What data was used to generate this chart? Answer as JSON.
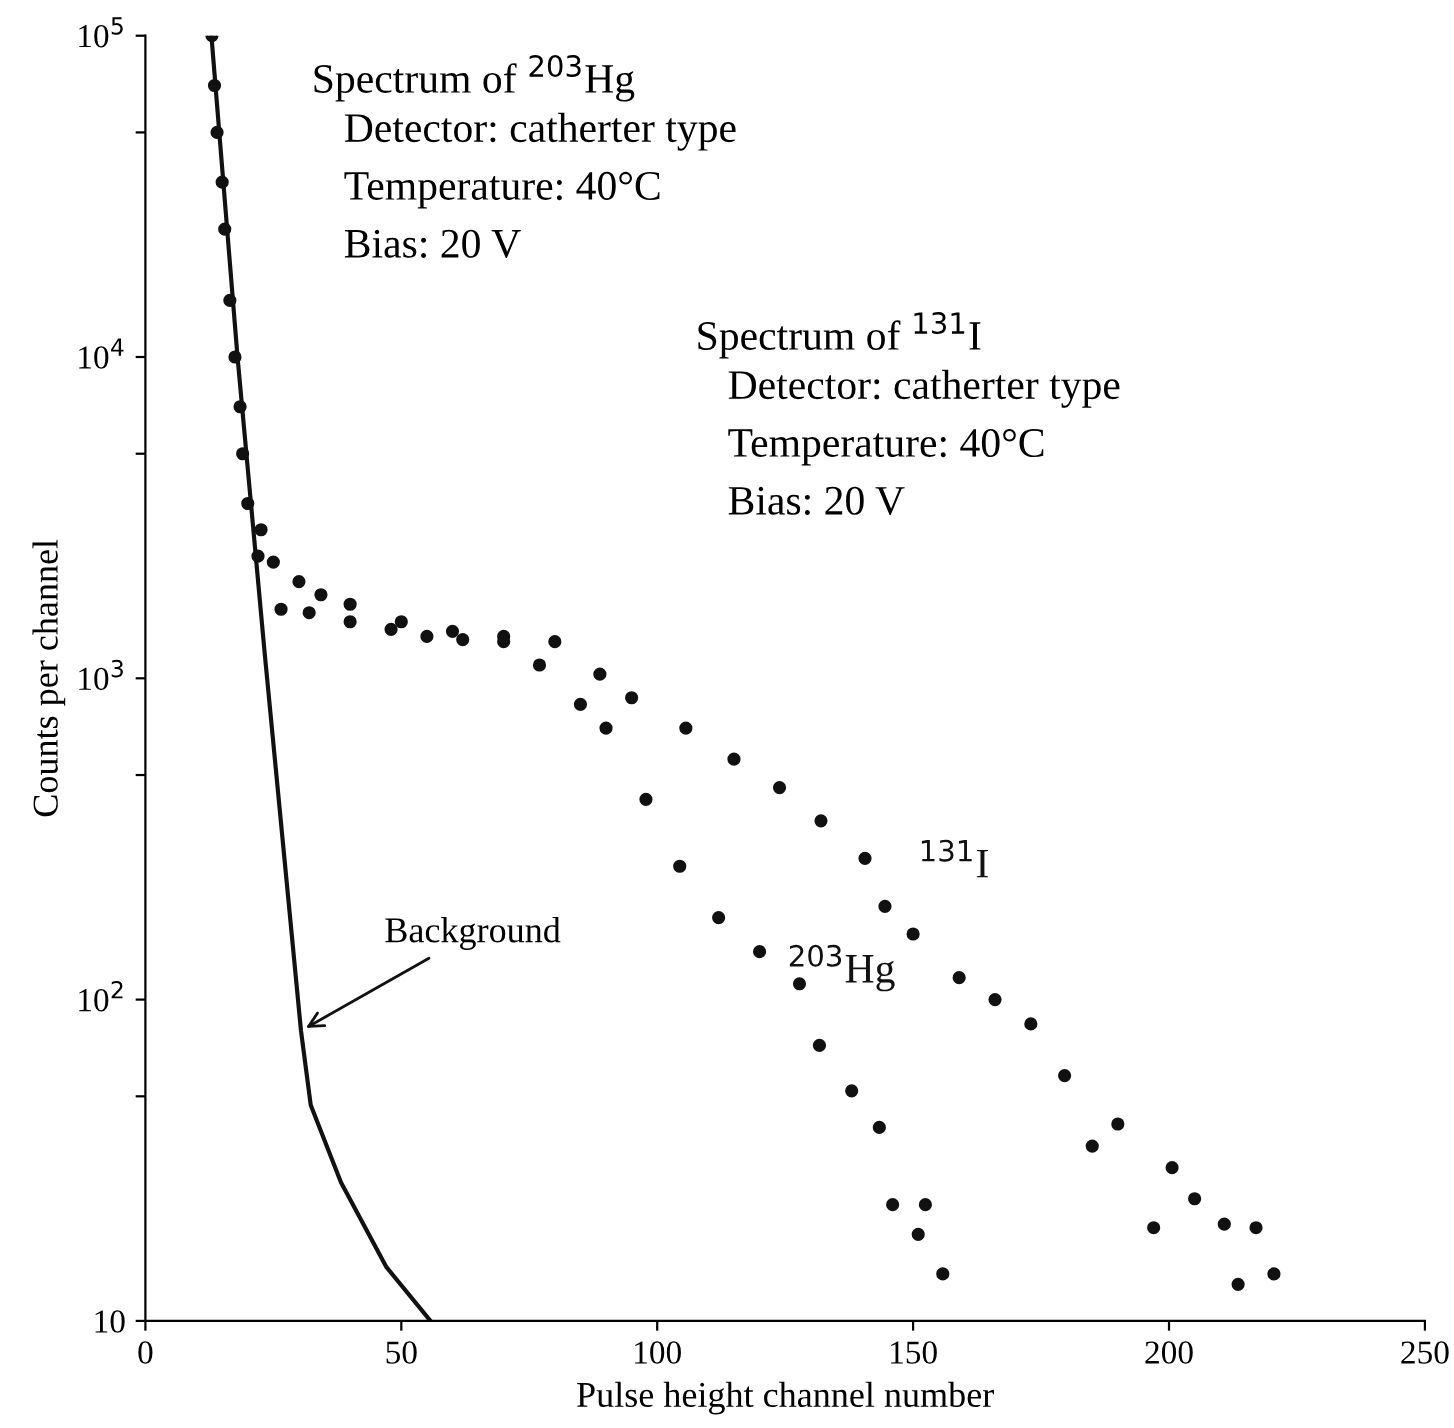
{
  "chart_data": {
    "type": "scatter",
    "xlabel": "Pulse height channel number",
    "ylabel": "Counts per channel",
    "log": "y",
    "xlim": [
      0,
      250
    ],
    "xticks": [
      0,
      50,
      100,
      150,
      200,
      250
    ],
    "ylim": [
      10,
      100000
    ],
    "yticks": [
      10,
      {
        "value": 50,
        "label": null
      },
      {
        "value": 100,
        "label": "10$^{2}$"
      },
      {
        "value": 500,
        "label": null
      },
      {
        "value": 1000,
        "label": "10$^{3}$"
      },
      {
        "value": 5000,
        "label": null
      },
      {
        "value": 10000,
        "label": "10$^{4}$"
      },
      {
        "value": 50000,
        "label": null
      },
      {
        "value": 100000,
        "label": "10$^{5}$"
      }
    ],
    "annotations": [
      "Spectrum of $^{203}$Hg",
      "Detector: catherter type",
      "Temperature: 40°C",
      "Bias: 20 V",
      "Spectrum of $^{131}$I",
      "Detector: catherter type",
      "Temperature: 40°C",
      "Bias: 20 V"
    ],
    "series": [
      {
        "name": "Background",
        "type": "line",
        "color": "#111111",
        "marker": "none",
        "line_style": "solid",
        "x": [
          12.9,
          18,
          23.3,
          30.4,
          32.3,
          38.2,
          47.1,
          55.7
        ],
        "values": [
          100000,
          10000,
          1200,
          80,
          47,
          27,
          14.7,
          10
        ]
      },
      {
        "name": "$^{131}$I",
        "color": "#111111",
        "marker": "circle",
        "x": [
          13,
          13.5,
          14,
          15,
          15.5,
          16.5,
          17.5,
          18.5,
          19,
          20,
          22.6,
          25,
          30,
          34.3,
          40,
          50,
          60,
          70,
          80,
          88.8,
          95,
          105.6,
          115,
          123.9,
          132,
          140.6,
          144.5,
          150,
          159,
          166,
          173,
          179.6,
          185,
          190,
          197,
          200.6,
          205,
          210.8,
          213.5,
          217,
          220.5
        ],
        "values": [
          100000,
          70000,
          50000,
          35000,
          25000,
          15000,
          10000,
          7000,
          5000,
          3500,
          2900,
          2300,
          2000,
          1820,
          1700,
          1500,
          1400,
          1350,
          1300,
          1030,
          870,
          700,
          560,
          457,
          360,
          275,
          195,
          160,
          117,
          100,
          84,
          58,
          35,
          41,
          19.5,
          30,
          24,
          20,
          13,
          19.5,
          14
        ]
      },
      {
        "name": "$^{203}$Hg",
        "color": "#111111",
        "marker": "circle",
        "x": [
          22,
          26.5,
          32,
          40,
          48,
          55,
          62,
          70,
          77,
          85,
          90,
          97.8,
          104.4,
          112,
          120,
          127.8,
          131.7,
          138,
          143.4,
          146,
          151,
          152.4,
          155.8
        ],
        "values": [
          2400,
          1640,
          1600,
          1500,
          1420,
          1350,
          1320,
          1300,
          1100,
          830,
          700,
          420,
          260,
          180,
          141,
          112,
          72,
          52,
          40,
          23,
          18.6,
          23,
          14
        ]
      }
    ]
  }
}
